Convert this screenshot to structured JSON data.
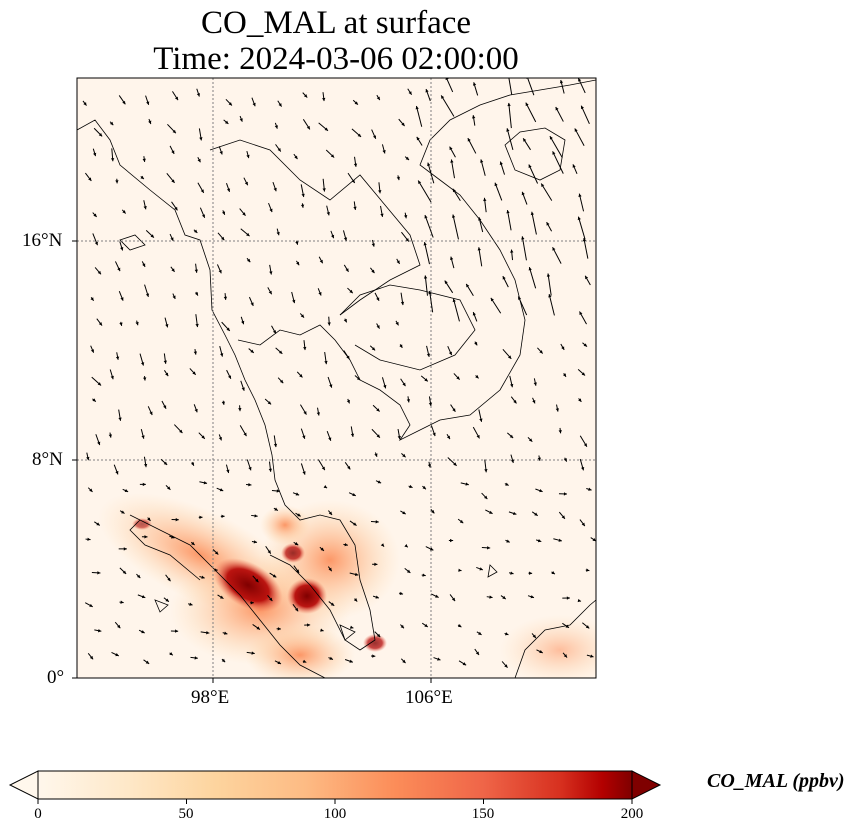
{
  "title_line1": "CO_MAL at surface",
  "title_line2": "Time: 2024-03-06 02:00:00",
  "lat_ticks": [
    "16°N",
    "8°N",
    "0°"
  ],
  "lon_ticks": [
    "98°E",
    "106°E"
  ],
  "colorbar": {
    "label": "CO_MAL (ppbv)",
    "ticks": [
      "0",
      "50",
      "100",
      "150",
      "200"
    ],
    "colormap": "OrRd",
    "range": [
      0,
      200
    ],
    "extend": "both"
  },
  "map": {
    "projection": "PlateCarree",
    "gridlines": "dotted",
    "background_color": "#fff5eb",
    "coastline_color": "#000000",
    "vector_color": "#000000"
  }
}
